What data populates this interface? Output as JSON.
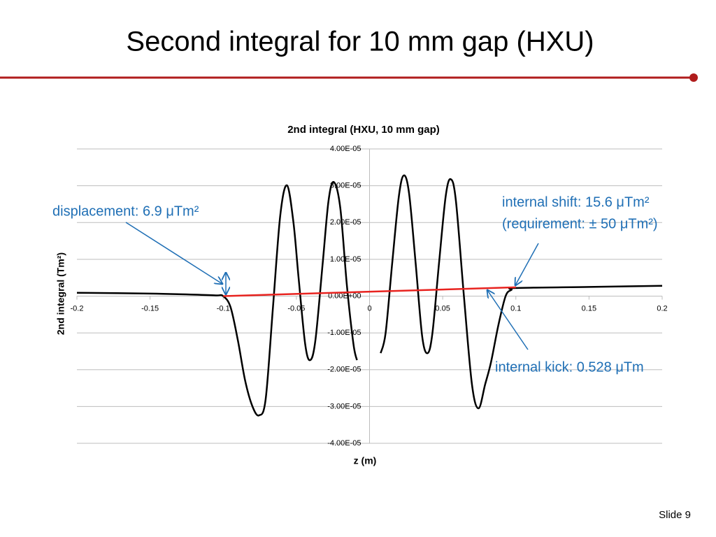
{
  "slide": {
    "title": "Second integral for 10 mm gap (HXU)",
    "footer": "Slide 9"
  },
  "chart_data": {
    "type": "line",
    "title": "2nd integral (HXU, 10 mm gap)",
    "x_label": "z (m)",
    "y_label": "2nd integral (Tm²)",
    "xlim": [
      -0.2,
      0.2
    ],
    "xticks": [
      -0.2,
      -0.15,
      -0.1,
      -0.05,
      0,
      0.05,
      0.1,
      0.15,
      0.2
    ],
    "ylim": [
      -4e-05,
      4e-05
    ],
    "yticks": [
      {
        "value": -4e-05,
        "label": "-4.00E-05"
      },
      {
        "value": -3e-05,
        "label": "-3.00E-05"
      },
      {
        "value": -2e-05,
        "label": "-2.00E-05"
      },
      {
        "value": -1e-05,
        "label": "-1.00E-05"
      },
      {
        "value": 0,
        "label": "0.00E+00"
      },
      {
        "value": 1e-05,
        "label": "1.00E-05"
      },
      {
        "value": 2e-05,
        "label": "2.00E-05"
      },
      {
        "value": 3e-05,
        "label": "3.00E-05"
      },
      {
        "value": 4e-05,
        "label": "4.00E-05"
      }
    ],
    "grid": true,
    "series": [
      {
        "color": "#000000",
        "x": [
          -0.2,
          -0.15,
          -0.12,
          -0.105,
          -0.1,
          -0.095,
          -0.09,
          -0.085,
          -0.08,
          -0.0755,
          -0.071,
          -0.066,
          -0.061,
          -0.0564,
          -0.052,
          -0.0485,
          -0.044,
          -0.0406,
          -0.037,
          -0.032,
          -0.028,
          -0.0244,
          -0.02,
          -0.0155,
          -0.011,
          -0.0086,
          0,
          0.0076,
          0.011,
          0.0155,
          0.02,
          0.0234,
          0.027,
          0.0315,
          0.036,
          0.0397,
          0.043,
          0.0475,
          0.052,
          0.0554,
          0.059,
          0.0645,
          0.07,
          0.0745,
          0.079,
          0.083,
          0.088,
          0.093,
          0.097,
          0.1,
          0.15,
          0.2
        ],
        "values": [
          9e-07,
          7e-07,
          4e-07,
          2e-07,
          0,
          -3e-06,
          -1.2e-05,
          -2.3e-05,
          -3e-05,
          -3.24e-05,
          -2.8e-05,
          -3e-06,
          2.2e-05,
          3.01e-05,
          2e-05,
          5e-06,
          -1.3e-05,
          -1.74e-05,
          -1.2e-05,
          9e-06,
          2.6e-05,
          3.1e-05,
          2.4e-05,
          3e-06,
          -1.3e-05,
          -1.74e-05,
          null,
          -1.55e-05,
          -1e-05,
          9e-06,
          2.7e-05,
          3.28e-05,
          2.8e-05,
          9e-06,
          -1.1e-05,
          -1.55e-05,
          -1e-05,
          9e-06,
          2.7e-05,
          3.18e-05,
          2.6e-05,
          0,
          -2.4e-05,
          -3.05e-05,
          -2.4e-05,
          -1.8e-05,
          -8e-06,
          0,
          1.7e-06,
          2.2e-06,
          2.5e-06,
          2.8e-06
        ]
      },
      {
        "color": "#e8231f",
        "x": [
          -0.1,
          0.1
        ],
        "values": [
          0,
          2.4e-06
        ]
      }
    ],
    "annotations": [
      {
        "text": "displacement: 6.9 μTm²"
      },
      {
        "text": "internal shift: 15.6 μTm²"
      },
      {
        "text": "(requirement: ± 50 μTm²)"
      },
      {
        "text": "internal kick: 0.528 μTm"
      }
    ]
  }
}
